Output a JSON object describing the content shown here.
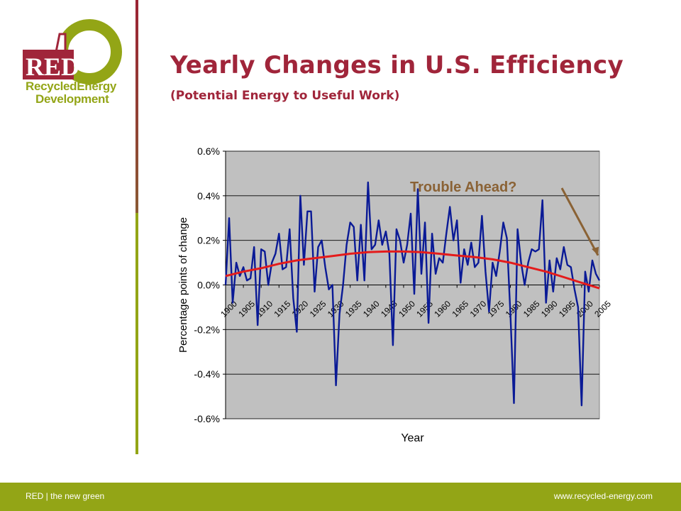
{
  "logo": {
    "mark": "RED",
    "line1": "RecycledEnergy",
    "line2": "Development",
    "colors": {
      "green": "#93a516",
      "red": "#a0253a"
    }
  },
  "header": {
    "title": "Yearly Changes in U.S. Efficiency",
    "subtitle": "(Potential Energy to Useful Work)"
  },
  "chart_data": {
    "type": "line",
    "xlabel": "Year",
    "ylabel": "Percentage points of change",
    "ylim": [
      -0.6,
      0.6
    ],
    "xlim": [
      1900,
      2005
    ],
    "yticks": [
      "0.6%",
      "0.4%",
      "0.2%",
      "0.0%",
      "-0.2%",
      "-0.4%",
      "-0.6%"
    ],
    "xticks": [
      "1900",
      "1905",
      "1910",
      "1915",
      "1920",
      "1925",
      "1930",
      "1935",
      "1940",
      "1945",
      "1950",
      "1955",
      "1960",
      "1965",
      "1970",
      "1975",
      "1980",
      "1985",
      "1990",
      "1995",
      "2000",
      "2005"
    ],
    "grid": true,
    "plot_bg": "#c0c0c0",
    "annotation": {
      "text": "Trouble Ahead?",
      "color": "#8a6235",
      "points_to": [
        2005,
        0.12
      ]
    },
    "series": [
      {
        "color": "#0a1a96",
        "x": [
          1900,
          1901,
          1902,
          1903,
          1904,
          1905,
          1906,
          1907,
          1908,
          1909,
          1910,
          1911,
          1912,
          1913,
          1914,
          1915,
          1916,
          1917,
          1918,
          1919,
          1920,
          1921,
          1922,
          1923,
          1924,
          1925,
          1926,
          1927,
          1928,
          1929,
          1930,
          1931,
          1932,
          1933,
          1934,
          1935,
          1936,
          1937,
          1938,
          1939,
          1940,
          1941,
          1942,
          1943,
          1944,
          1945,
          1946,
          1947,
          1948,
          1949,
          1950,
          1951,
          1952,
          1953,
          1954,
          1955,
          1956,
          1957,
          1958,
          1959,
          1960,
          1961,
          1962,
          1963,
          1964,
          1965,
          1966,
          1967,
          1968,
          1969,
          1970,
          1971,
          1972,
          1973,
          1974,
          1975,
          1976,
          1977,
          1978,
          1979,
          1980,
          1981,
          1982,
          1983,
          1984,
          1985,
          1986,
          1987,
          1988,
          1989,
          1990,
          1991,
          1992,
          1993,
          1994,
          1995,
          1996,
          1997,
          1998,
          1999,
          2000,
          2001,
          2002,
          2003,
          2004,
          2005
        ],
        "y": [
          0.0,
          0.3,
          -0.08,
          0.1,
          0.04,
          0.08,
          0.02,
          0.03,
          0.17,
          -0.18,
          0.16,
          0.15,
          0.0,
          0.1,
          0.14,
          0.23,
          0.07,
          0.08,
          0.25,
          -0.06,
          -0.21,
          0.4,
          0.09,
          0.33,
          0.33,
          -0.03,
          0.17,
          0.2,
          0.08,
          -0.02,
          0.0,
          -0.45,
          -0.13,
          0.0,
          0.18,
          0.28,
          0.26,
          0.02,
          0.27,
          0.02,
          0.46,
          0.16,
          0.18,
          0.29,
          0.18,
          0.24,
          0.14,
          -0.27,
          0.25,
          0.2,
          0.1,
          0.18,
          0.32,
          -0.04,
          0.43,
          0.05,
          0.28,
          -0.17,
          0.23,
          0.05,
          0.12,
          0.1,
          0.23,
          0.35,
          0.2,
          0.29,
          0.01,
          0.16,
          0.09,
          0.19,
          0.08,
          0.1,
          0.31,
          0.06,
          -0.12,
          0.1,
          0.04,
          0.15,
          0.28,
          0.21,
          -0.13,
          -0.53,
          0.25,
          0.1,
          0.0,
          0.1,
          0.16,
          0.15,
          0.16,
          0.38,
          -0.08,
          0.11,
          -0.03,
          0.12,
          0.07,
          0.17,
          0.09,
          0.08,
          -0.02,
          -0.1,
          -0.54,
          0.06,
          -0.03,
          0.11,
          0.05,
          0.02
        ]
      },
      {
        "color": "#e41b1b",
        "x": [
          1900,
          1905,
          1910,
          1915,
          1920,
          1925,
          1930,
          1935,
          1940,
          1945,
          1950,
          1955,
          1960,
          1965,
          1970,
          1975,
          1980,
          1985,
          1990,
          1995,
          2000,
          2005
        ],
        "y": [
          0.04,
          0.06,
          0.075,
          0.095,
          0.11,
          0.12,
          0.13,
          0.14,
          0.147,
          0.15,
          0.15,
          0.147,
          0.14,
          0.132,
          0.125,
          0.115,
          0.1,
          0.08,
          0.06,
          0.035,
          0.01,
          -0.015
        ]
      }
    ]
  },
  "footer": {
    "left": "RED | the new green",
    "right": "www.recycled-energy.com"
  }
}
